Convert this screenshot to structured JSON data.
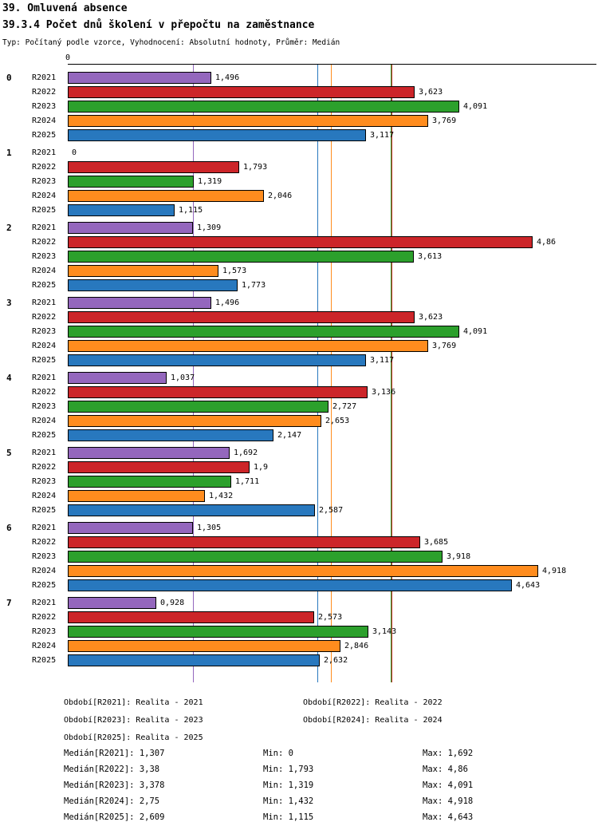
{
  "header": {
    "title": "39. Omluvená absence",
    "subtitle": "39.3.4 Počet dnů školení v přepočtu na zaměstnance",
    "meta": "Typ: Počítaný podle vzorce, Vyhodnocení: Absolutní hodnoty, Průměr: Medián"
  },
  "chart_data": {
    "type": "bar",
    "orientation": "horizontal",
    "origin_label": "0",
    "xlim": [
      0,
      5.5
    ],
    "grid": false,
    "legend_position": "bottom",
    "categories": [
      "0",
      "1",
      "2",
      "3",
      "4",
      "5",
      "6",
      "7"
    ],
    "series": [
      {
        "name": "R2021",
        "color": "#9467BD",
        "values": [
          1.496,
          0,
          1.309,
          1.496,
          1.037,
          1.692,
          1.305,
          0.928
        ],
        "labels": [
          "1,496",
          "0",
          "1,309",
          "1,496",
          "1,037",
          "1,692",
          "1,305",
          "0,928"
        ],
        "median": 1.307,
        "min": 0,
        "max": 1.692
      },
      {
        "name": "R2022",
        "color": "#CC2529",
        "values": [
          3.623,
          1.793,
          4.86,
          3.623,
          3.136,
          1.9,
          3.685,
          2.573
        ],
        "labels": [
          "3,623",
          "1,793",
          "4,86",
          "3,623",
          "3,136",
          "1,9",
          "3,685",
          "2,573"
        ],
        "median": 3.38,
        "min": 1.793,
        "max": 4.86
      },
      {
        "name": "R2023",
        "color": "#2CA02C",
        "values": [
          4.091,
          1.319,
          3.613,
          4.091,
          2.727,
          1.711,
          3.918,
          3.143
        ],
        "labels": [
          "4,091",
          "1,319",
          "3,613",
          "4,091",
          "2,727",
          "1,711",
          "3,918",
          "3,143"
        ],
        "median": 3.378,
        "min": 1.319,
        "max": 4.091
      },
      {
        "name": "R2024",
        "color": "#FF8C1E",
        "values": [
          3.769,
          2.046,
          1.573,
          3.769,
          2.653,
          1.432,
          4.918,
          2.846
        ],
        "labels": [
          "3,769",
          "2,046",
          "1,573",
          "3,769",
          "2,653",
          "1,432",
          "4,918",
          "2,846"
        ],
        "median": 2.75,
        "min": 1.432,
        "max": 4.918
      },
      {
        "name": "R2025",
        "color": "#2878BE",
        "values": [
          3.117,
          1.115,
          1.773,
          3.117,
          2.147,
          2.587,
          4.643,
          2.632
        ],
        "labels": [
          "3,117",
          "1,115",
          "1,773",
          "3,117",
          "2,147",
          "2,587",
          "4,643",
          "2,632"
        ],
        "median": 2.609,
        "min": 1.115,
        "max": 4.643
      }
    ]
  },
  "legend": {
    "items": [
      "Období[R2021]: Realita - 2021",
      "Období[R2022]: Realita - 2022",
      "Období[R2023]: Realita - 2023",
      "Období[R2024]: Realita - 2024",
      "Období[R2025]: Realita - 2025"
    ]
  },
  "stats": {
    "rows": [
      {
        "median": "Medián[R2021]: 1,307",
        "min": "Min: 0",
        "max": "Max: 1,692"
      },
      {
        "median": "Medián[R2022]: 3,38",
        "min": "Min: 1,793",
        "max": "Max: 4,86"
      },
      {
        "median": "Medián[R2023]: 3,378",
        "min": "Min: 1,319",
        "max": "Max: 4,091"
      },
      {
        "median": "Medián[R2024]: 2,75",
        "min": "Min: 1,432",
        "max": "Max: 4,918"
      },
      {
        "median": "Medián[R2025]: 2,609",
        "min": "Min: 1,115",
        "max": "Max: 4,643"
      }
    ]
  }
}
